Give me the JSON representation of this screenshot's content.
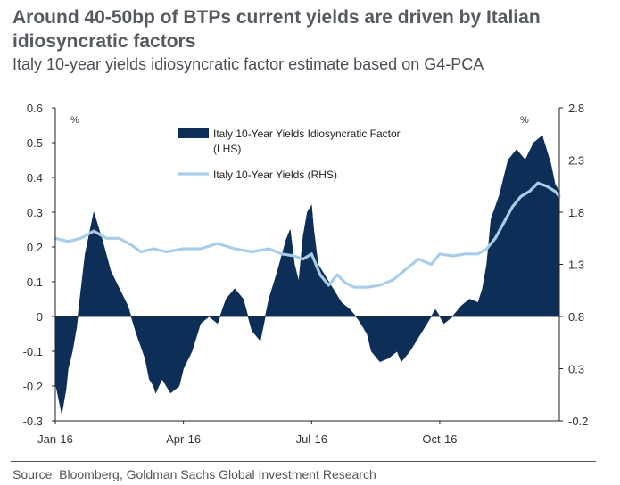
{
  "title": "Around 40-50bp of BTPs current yields are driven by Italian idiosyncratic factors",
  "subtitle": "Italy 10-year yields idiosyncratic factor estimate based on G4-PCA",
  "source": "Source: Bloomberg, Goldman Sachs Global Investment Research",
  "colors": {
    "factor": "#0d2f57",
    "yield": "#a9cde9",
    "axis": "#222222"
  },
  "chart_data": {
    "type": "area",
    "title": "Around 40-50bp of BTPs current yields are driven by Italian idiosyncratic factors",
    "x_unit": "months since Jan-16",
    "x_ticks": [
      {
        "label": "Jan-16",
        "value": 0
      },
      {
        "label": "Apr-16",
        "value": 3
      },
      {
        "label": "Jul-16",
        "value": 6
      },
      {
        "label": "Oct-16",
        "value": 9
      }
    ],
    "xlim": [
      0,
      11.8
    ],
    "left_axis": {
      "unit_label": "%",
      "ylim": [
        -0.3,
        0.6
      ],
      "ticks": [
        "0.6",
        "0.5",
        "0.4",
        "0.3",
        "0.2",
        "0.1",
        "0",
        "-0.1",
        "-0.2",
        "-0.3"
      ]
    },
    "right_axis": {
      "unit_label": "%",
      "ylim": [
        -0.2,
        2.8
      ],
      "ticks": [
        "2.8",
        "2.3",
        "1.8",
        "1.3",
        "0.8",
        "0.3",
        "-0.2"
      ]
    },
    "legend": [
      {
        "label_line1": "Italy 10-Year Yields Idiosyncratic Factor",
        "label_line2": "(LHS)",
        "style": "area"
      },
      {
        "label_line1": "Italy 10-Year Yields (RHS)",
        "label_line2": "",
        "style": "line"
      }
    ],
    "series": [
      {
        "name": "Italy 10-Year Yields Idiosyncratic Factor (LHS)",
        "axis": "left",
        "type": "area",
        "x": [
          0.0,
          0.1,
          0.15,
          0.25,
          0.3,
          0.4,
          0.5,
          0.7,
          0.9,
          1.1,
          1.3,
          1.5,
          1.7,
          1.9,
          2.1,
          2.2,
          2.3,
          2.35,
          2.5,
          2.7,
          2.9,
          3.0,
          3.2,
          3.3,
          3.4,
          3.6,
          3.8,
          4.0,
          4.2,
          4.4,
          4.6,
          4.8,
          5.0,
          5.2,
          5.4,
          5.5,
          5.6,
          5.7,
          5.8,
          5.9,
          6.0,
          6.05,
          6.15,
          6.3,
          6.5,
          6.7,
          6.9,
          7.1,
          7.3,
          7.4,
          7.6,
          7.8,
          8.0,
          8.1,
          8.3,
          8.5,
          8.7,
          8.9,
          9.1,
          9.3,
          9.5,
          9.7,
          9.9,
          10.0,
          10.1,
          10.2,
          10.4,
          10.6,
          10.8,
          11.0,
          11.2,
          11.4,
          11.5,
          11.6,
          11.7,
          11.8
        ],
        "values": [
          -0.19,
          -0.25,
          -0.28,
          -0.21,
          -0.15,
          -0.1,
          -0.03,
          0.18,
          0.3,
          0.22,
          0.13,
          0.08,
          0.03,
          -0.05,
          -0.12,
          -0.18,
          -0.2,
          -0.22,
          -0.18,
          -0.22,
          -0.2,
          -0.15,
          -0.1,
          -0.06,
          -0.02,
          0.0,
          -0.02,
          0.05,
          0.08,
          0.05,
          -0.04,
          -0.07,
          0.05,
          0.13,
          0.22,
          0.25,
          0.15,
          0.1,
          0.23,
          0.3,
          0.32,
          0.25,
          0.15,
          0.12,
          0.08,
          0.04,
          0.02,
          -0.01,
          -0.05,
          -0.1,
          -0.13,
          -0.12,
          -0.1,
          -0.13,
          -0.1,
          -0.06,
          -0.02,
          0.02,
          -0.02,
          0.0,
          0.03,
          0.05,
          0.04,
          0.08,
          0.15,
          0.28,
          0.35,
          0.45,
          0.48,
          0.45,
          0.5,
          0.52,
          0.48,
          0.44,
          0.38,
          0.36
        ]
      },
      {
        "name": "Italy 10-Year Yields (RHS)",
        "axis": "right",
        "type": "line",
        "x": [
          0.0,
          0.3,
          0.6,
          0.9,
          1.2,
          1.5,
          1.8,
          2.0,
          2.3,
          2.6,
          3.0,
          3.4,
          3.8,
          4.2,
          4.6,
          5.0,
          5.3,
          5.6,
          5.8,
          6.0,
          6.2,
          6.4,
          6.6,
          6.8,
          7.0,
          7.3,
          7.6,
          7.9,
          8.2,
          8.5,
          8.8,
          9.0,
          9.3,
          9.6,
          9.9,
          10.1,
          10.3,
          10.5,
          10.7,
          10.9,
          11.1,
          11.3,
          11.5,
          11.7,
          11.8
        ],
        "values": [
          1.55,
          1.52,
          1.55,
          1.62,
          1.55,
          1.55,
          1.48,
          1.42,
          1.45,
          1.42,
          1.45,
          1.45,
          1.5,
          1.45,
          1.42,
          1.45,
          1.4,
          1.38,
          1.35,
          1.4,
          1.2,
          1.1,
          1.2,
          1.12,
          1.08,
          1.08,
          1.1,
          1.15,
          1.25,
          1.35,
          1.3,
          1.4,
          1.38,
          1.4,
          1.4,
          1.45,
          1.55,
          1.7,
          1.85,
          1.95,
          2.0,
          2.08,
          2.05,
          2.0,
          1.95
        ]
      }
    ]
  }
}
